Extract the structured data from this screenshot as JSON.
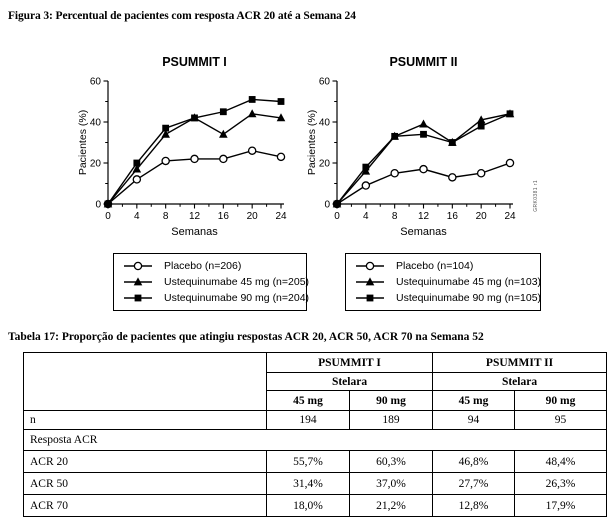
{
  "page": {
    "figure_caption": "Figura 3: Percentual de pacientes com resposta ACR 20 até a Semana 24",
    "table_caption": "Tabela 17: Proporção de pacientes que atingiu respostas ACR 20, ACR 50, ACR 70 na Semana 52",
    "side_code": "GRK0381 r1"
  },
  "colors": {
    "line": "#000000",
    "background": "#ffffff",
    "text": "#000000"
  },
  "chart_data": [
    {
      "type": "line",
      "title": "PSUMMIT I",
      "xlabel": "Semanas",
      "ylabel": "Pacientes (%)",
      "x": [
        0,
        4,
        8,
        12,
        16,
        20,
        24
      ],
      "xticks": [
        0,
        4,
        8,
        12,
        16,
        20,
        24
      ],
      "yticks": [
        0,
        20,
        40,
        60
      ],
      "xlim": [
        0,
        24
      ],
      "ylim": [
        0,
        60
      ],
      "grid": false,
      "legend_position": "below",
      "series": [
        {
          "name": "Placebo (n=206)",
          "marker": "circle-open",
          "values": [
            0,
            12,
            21,
            22,
            22,
            26,
            23
          ]
        },
        {
          "name": "Ustequinumabe 45 mg (n=205)",
          "marker": "triangle-filled",
          "values": [
            0,
            17,
            34,
            42,
            34,
            44,
            42
          ]
        },
        {
          "name": "Ustequinumabe 90 mg (n=204)",
          "marker": "square-filled",
          "values": [
            0,
            20,
            37,
            42,
            45,
            51,
            50
          ]
        }
      ]
    },
    {
      "type": "line",
      "title": "PSUMMIT II",
      "xlabel": "Semanas",
      "ylabel": "Pacientes (%)",
      "x": [
        0,
        4,
        8,
        12,
        16,
        20,
        24
      ],
      "xticks": [
        0,
        4,
        8,
        12,
        16,
        20,
        24
      ],
      "yticks": [
        0,
        20,
        40,
        60
      ],
      "xlim": [
        0,
        24
      ],
      "ylim": [
        0,
        60
      ],
      "grid": false,
      "legend_position": "below",
      "series": [
        {
          "name": "Placebo (n=104)",
          "marker": "circle-open",
          "values": [
            0,
            9,
            15,
            17,
            13,
            15,
            20
          ]
        },
        {
          "name": "Ustequinumabe 45 mg (n=103)",
          "marker": "triangle-filled",
          "values": [
            0,
            16,
            33,
            39,
            30,
            41,
            44
          ]
        },
        {
          "name": "Ustequinumabe 90 mg (n=105)",
          "marker": "square-filled",
          "values": [
            0,
            18,
            33,
            34,
            30,
            38,
            44
          ]
        }
      ]
    }
  ],
  "table": {
    "group_headers": [
      "PSUMMIT I",
      "PSUMMIT II"
    ],
    "subgroup_headers": [
      "Stelara",
      "Stelara"
    ],
    "dose_headers": [
      "45 mg",
      "90 mg",
      "45 mg",
      "90 mg"
    ],
    "n_row": {
      "label": "n",
      "values": [
        "194",
        "189",
        "94",
        "95"
      ]
    },
    "section_label": "Resposta ACR",
    "rows": [
      {
        "label": "ACR 20",
        "values": [
          "55,7%",
          "60,3%",
          "46,8%",
          "48,4%"
        ]
      },
      {
        "label": "ACR 50",
        "values": [
          "31,4%",
          "37,0%",
          "27,7%",
          "26,3%"
        ]
      },
      {
        "label": "ACR 70",
        "values": [
          "18,0%",
          "21,2%",
          "12,8%",
          "17,9%"
        ]
      }
    ]
  }
}
